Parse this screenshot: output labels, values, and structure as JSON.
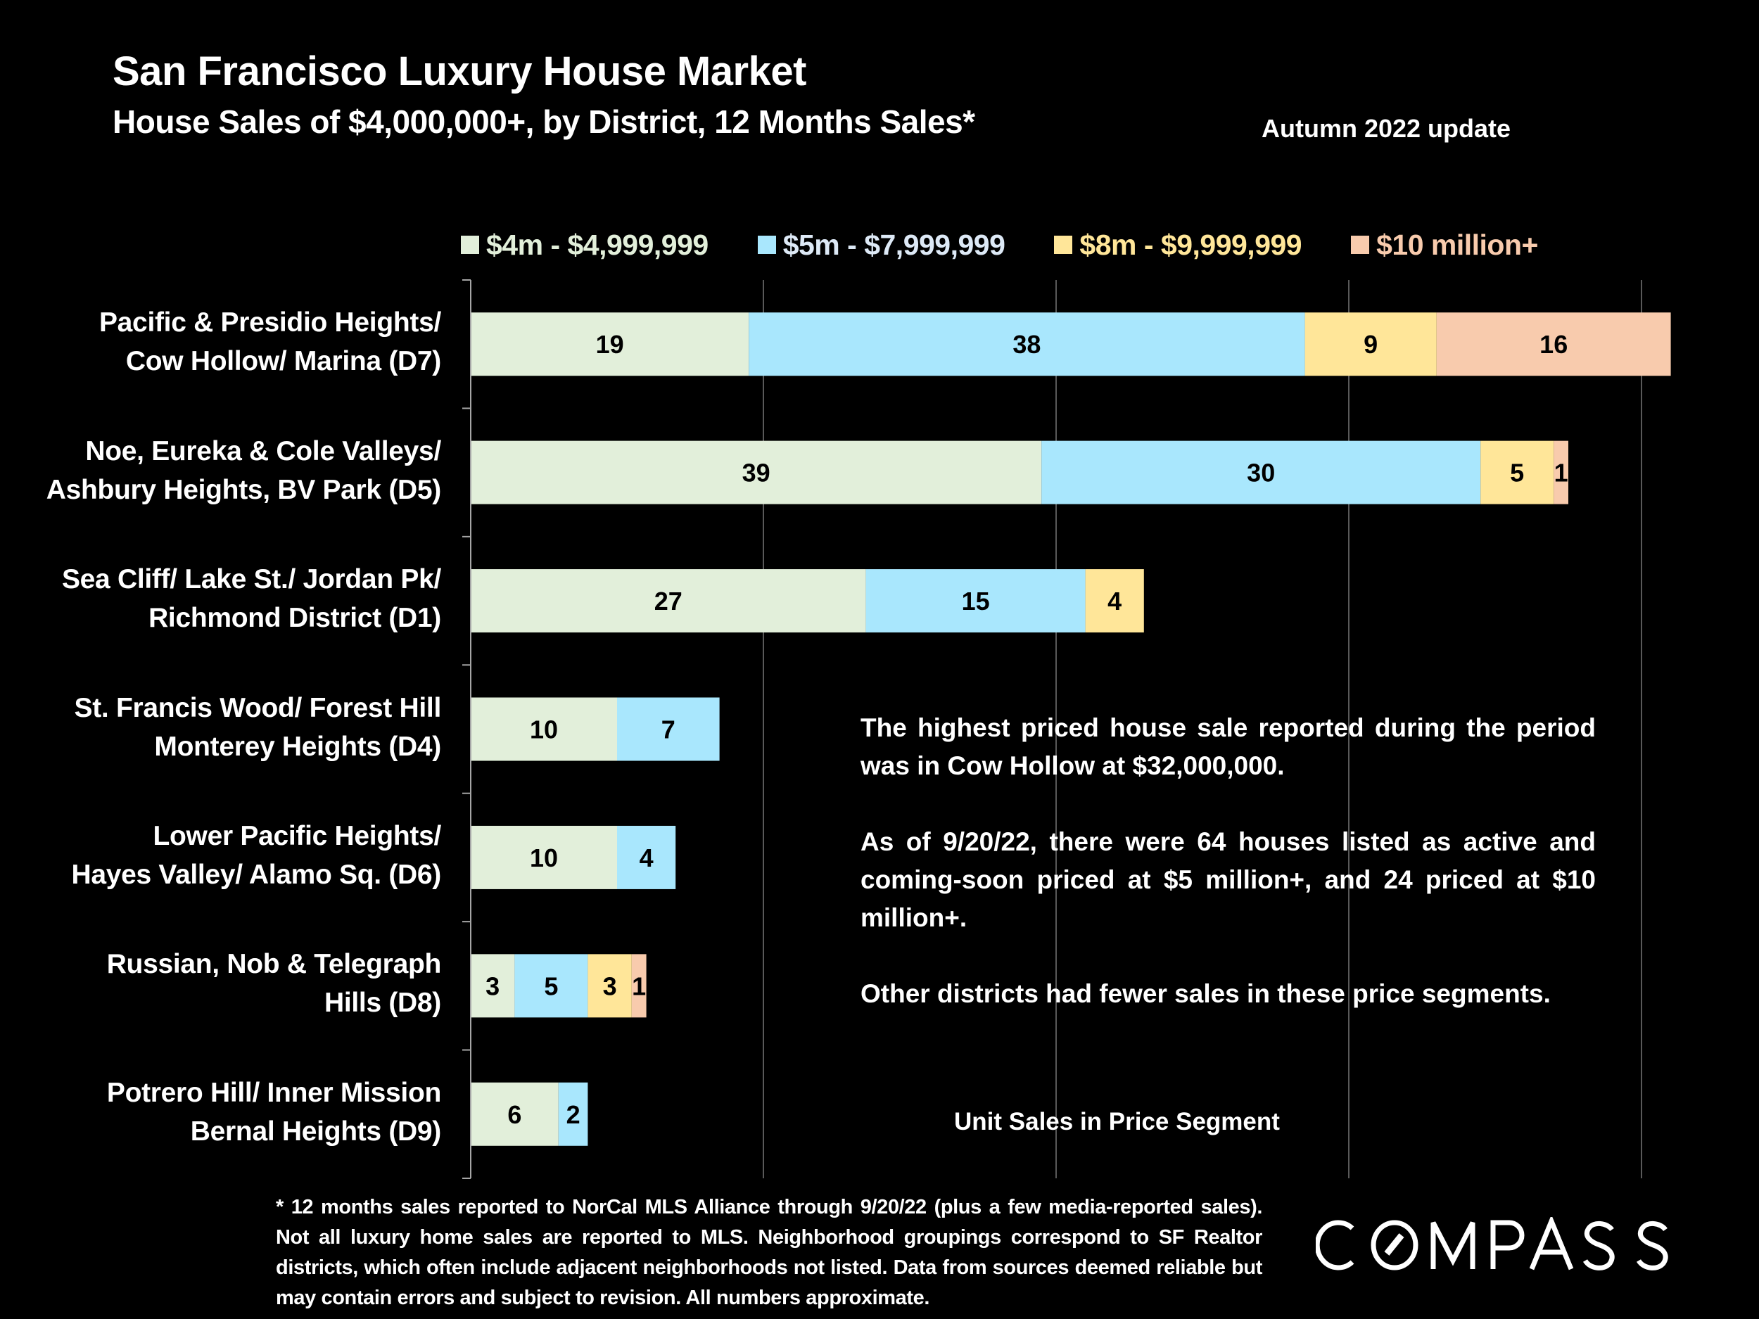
{
  "header": {
    "title": "San Francisco Luxury House Market",
    "subtitle": "House Sales of $4,000,000+, by District, 12 Months Sales*",
    "update": "Autumn 2022 update"
  },
  "colors": {
    "background": "#000000",
    "seg_4m": "#e2efda",
    "seg_5m": "#a9e7fd",
    "seg_8m": "#ffe699",
    "seg_10m": "#f8cbad",
    "legend_text_4m": "#e2efda",
    "legend_text_5m": "#dde9f6",
    "legend_text_8m": "#ffe699",
    "legend_text_10m": "#f8cbad",
    "gridline": "#595959",
    "axis": "#a6a6a6"
  },
  "chart_data": {
    "type": "bar",
    "orientation": "horizontal",
    "stacked": true,
    "title": "San Francisco Luxury House Market",
    "subtitle": "House Sales of $4,000,000+, by District, 12 Months Sales*",
    "xlabel": "Unit Sales in Price Segment",
    "ylabel": "",
    "xlim": [
      0,
      84
    ],
    "gridlines_at": [
      20,
      40,
      60,
      80
    ],
    "grid": true,
    "tick_labels_shown": false,
    "legend_position": "top",
    "categories": [
      [
        "Pacific & Presidio Heights/",
        "Cow Hollow/ Marina (D7)"
      ],
      [
        "Noe, Eureka & Cole Valleys/",
        "Ashbury Heights, BV Park (D5)"
      ],
      [
        "Sea Cliff/ Lake St./ Jordan Pk/",
        "Richmond District (D1)"
      ],
      [
        "St. Francis Wood/ Forest Hill",
        "Monterey Heights (D4)"
      ],
      [
        "Lower Pacific Heights/",
        "Hayes Valley/ Alamo Sq. (D6)"
      ],
      [
        "Russian, Nob & Telegraph",
        "Hills (D8)"
      ],
      [
        "Potrero Hill/ Inner Mission",
        "Bernal Heights (D9)"
      ]
    ],
    "series": [
      {
        "name": "$4m - $4,999,999",
        "color_key": "seg_4m",
        "values": [
          19,
          39,
          27,
          10,
          10,
          3,
          6
        ]
      },
      {
        "name": "$5m - $7,999,999",
        "color_key": "seg_5m",
        "values": [
          38,
          30,
          15,
          7,
          4,
          5,
          2
        ]
      },
      {
        "name": "$8m - $9,999,999",
        "color_key": "seg_8m",
        "values": [
          9,
          5,
          4,
          0,
          0,
          3,
          0
        ]
      },
      {
        "name": "$10 million+",
        "color_key": "seg_10m",
        "values": [
          16,
          1,
          0,
          0,
          0,
          1,
          0
        ]
      }
    ]
  },
  "legend": [
    {
      "label": "$4m - $4,999,999",
      "swatch": "#e2efda",
      "text_color": "#e2efda"
    },
    {
      "label": "$5m - $7,999,999",
      "swatch": "#a9e7fd",
      "text_color": "#dde9f6"
    },
    {
      "label": "$8m - $9,999,999",
      "swatch": "#ffe699",
      "text_color": "#ffe699"
    },
    {
      "label": "$10 million+",
      "swatch": "#f8cbad",
      "text_color": "#f8cbad"
    }
  ],
  "callout": {
    "p1": "The highest priced house sale reported during the period was in Cow Hollow at $32,000,000.",
    "p2": "As of 9/20/22, there were 64 houses listed as active and coming-soon priced at $5 million+, and 24 priced at $10 million+.",
    "p3": "Other districts had fewer sales in these price segments."
  },
  "footnote": "* 12 months sales reported to NorCal MLS Alliance through 9/20/22 (plus a few media-reported sales). Not all luxury home sales are reported to MLS. Neighborhood groupings correspond to SF Realtor districts, which often include adjacent neighborhoods not listed. Data from sources deemed reliable but may contain errors and subject to revision. All numbers approximate.",
  "logo": {
    "text": "COMPASS"
  }
}
